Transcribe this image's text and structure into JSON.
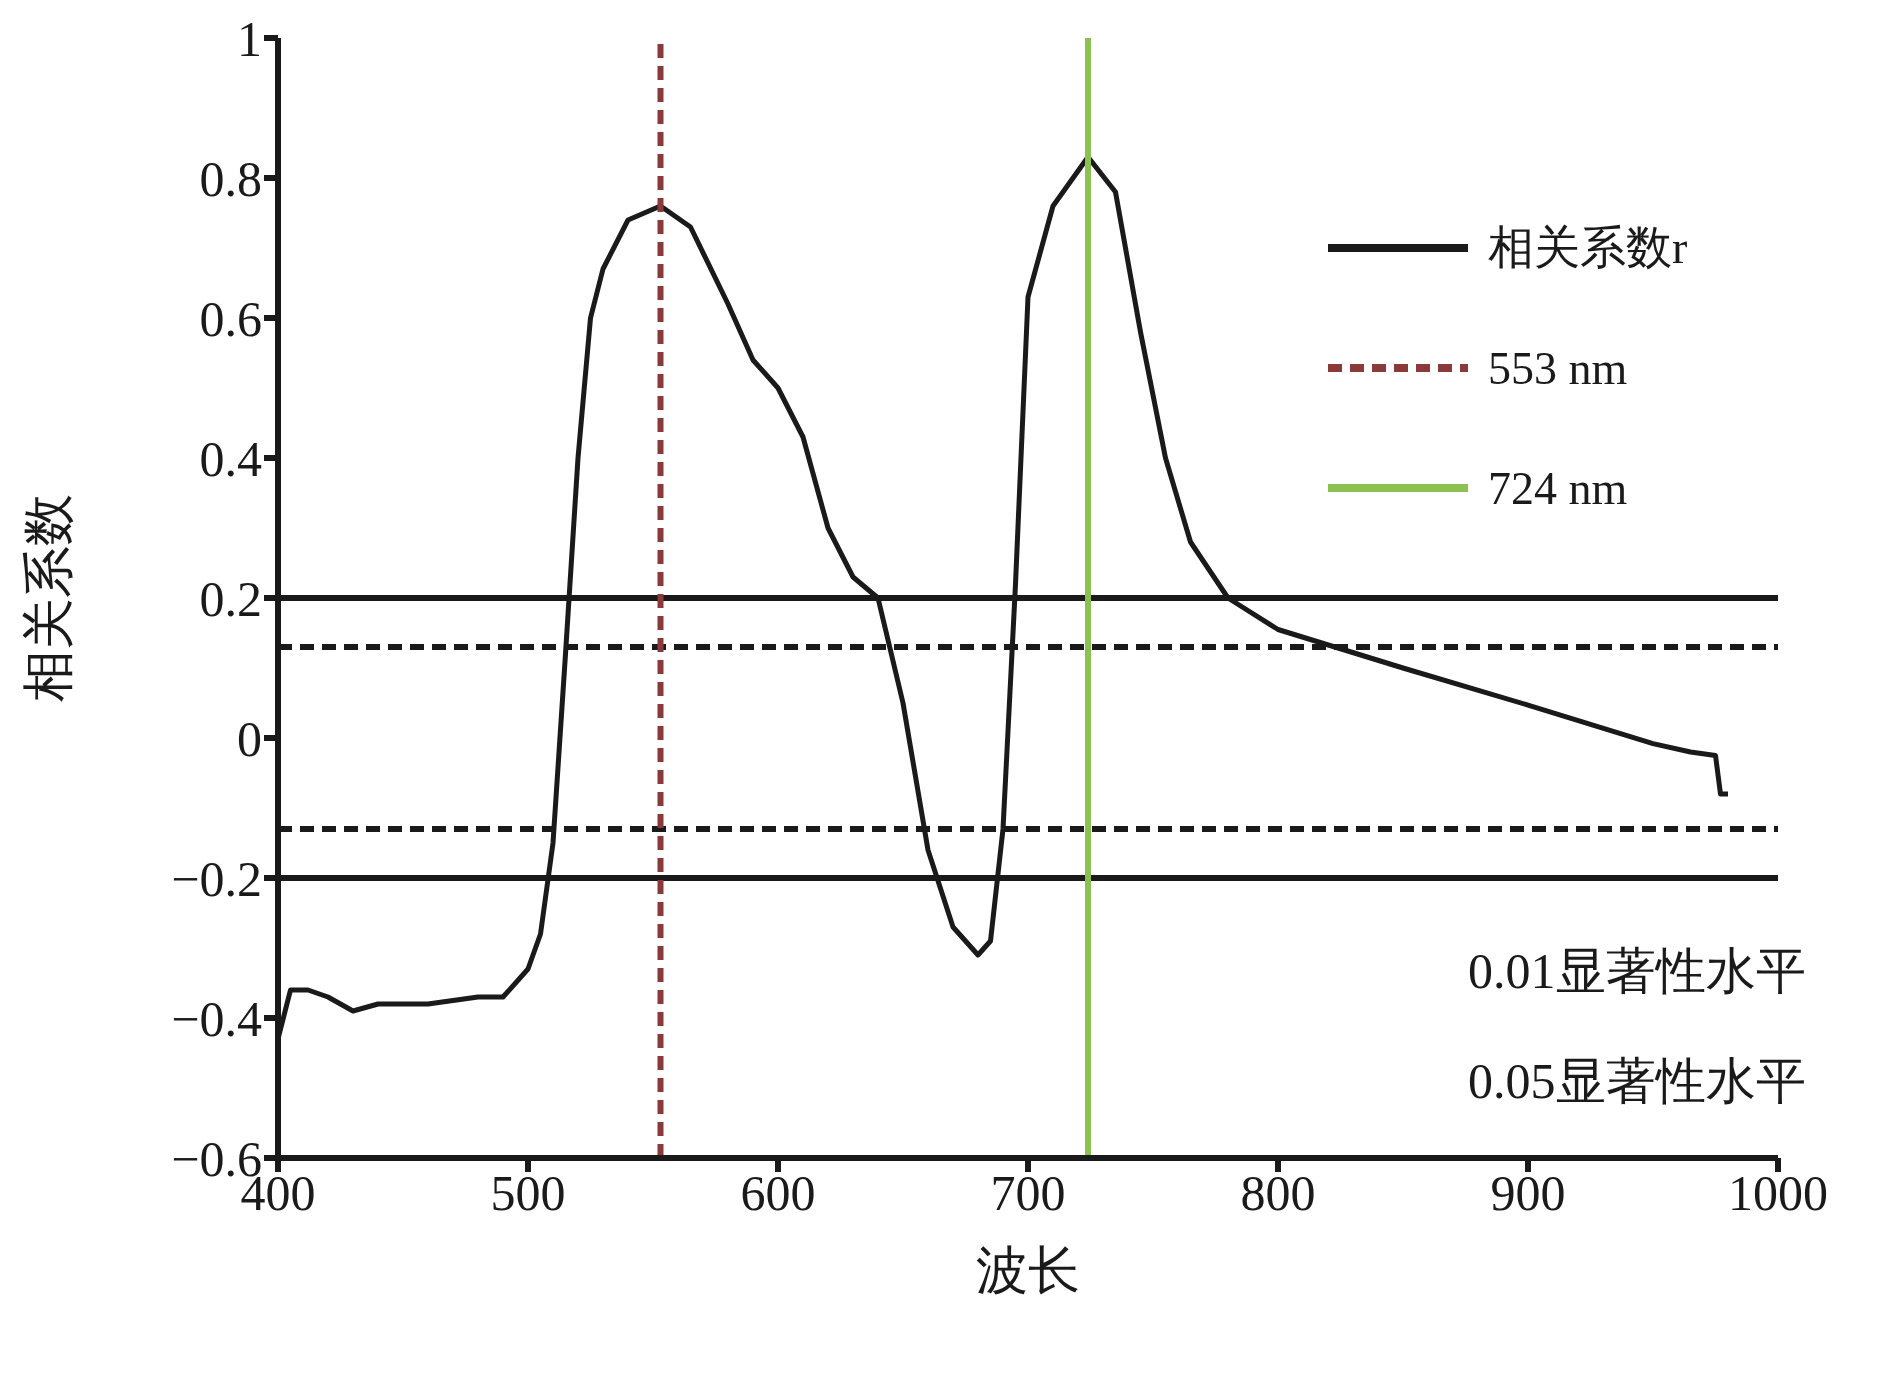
{
  "chart_data": {
    "type": "line",
    "xlabel": "波长",
    "ylabel": "相关系数",
    "xlim": [
      400,
      1000
    ],
    "xticks": [
      400,
      500,
      600,
      700,
      800,
      900,
      1000
    ],
    "ylim": [
      -0.6,
      1
    ],
    "yticks": [
      -0.6,
      -0.4,
      -0.2,
      0,
      0.2,
      0.4,
      0.6,
      0.8,
      1
    ],
    "series": [
      {
        "name": "相关系数r",
        "color": "#1a1a1a",
        "x": [
          400,
          405,
          412,
          420,
          430,
          440,
          460,
          480,
          490,
          500,
          505,
          510,
          515,
          520,
          525,
          530,
          540,
          553,
          565,
          580,
          590,
          600,
          610,
          620,
          630,
          640,
          650,
          660,
          670,
          680,
          685,
          690,
          695,
          700,
          710,
          724,
          735,
          745,
          755,
          765,
          780,
          800,
          850,
          900,
          950,
          965,
          975,
          977,
          980
        ],
        "values": [
          -0.43,
          -0.36,
          -0.36,
          -0.37,
          -0.39,
          -0.38,
          -0.38,
          -0.37,
          -0.37,
          -0.33,
          -0.28,
          -0.15,
          0.12,
          0.4,
          0.6,
          0.67,
          0.74,
          0.76,
          0.73,
          0.62,
          0.54,
          0.5,
          0.43,
          0.3,
          0.23,
          0.2,
          0.05,
          -0.16,
          -0.27,
          -0.31,
          -0.29,
          -0.13,
          0.22,
          0.63,
          0.76,
          0.83,
          0.78,
          0.58,
          0.4,
          0.28,
          0.2,
          0.155,
          0.1,
          0.047,
          -0.008,
          -0.02,
          -0.025,
          -0.08,
          -0.08
        ]
      },
      {
        "name": "553 nm",
        "color": "#8b3a3a",
        "line_style": "dashed",
        "x": [
          553,
          553
        ],
        "values": [
          -0.6,
          1
        ]
      },
      {
        "name": "724 nm",
        "color": "#8cc152",
        "line_style": "solid",
        "x": [
          724,
          724
        ],
        "values": [
          -0.6,
          1
        ]
      }
    ],
    "ref_lines": [
      {
        "axis": "y",
        "value": 0.2,
        "color": "#1a1a1a",
        "line_style": "solid"
      },
      {
        "axis": "y",
        "value": -0.2,
        "color": "#1a1a1a",
        "line_style": "solid"
      },
      {
        "axis": "y",
        "value": 0.13,
        "color": "#1a1a1a",
        "line_style": "dashed"
      },
      {
        "axis": "y",
        "value": -0.13,
        "color": "#1a1a1a",
        "line_style": "dashed"
      }
    ],
    "annotations": [
      "0.01显著性水平",
      "0.05显著性水平"
    ],
    "legend": "top right",
    "grid": false,
    "marker": "none",
    "line_style": "solid"
  }
}
